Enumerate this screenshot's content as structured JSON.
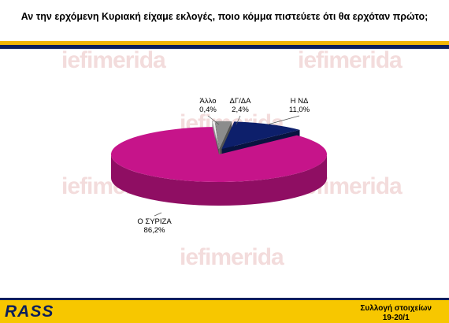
{
  "title": "Αν την ερχόμενη Κυριακή είχαμε εκλογές, ποιο κόμμα πιστεύετε ότι θα ερχόταν πρώτο;",
  "watermark": "iefimerida",
  "footer": {
    "logo": "RASS",
    "collection_label": "Συλλογή στοιχείων",
    "collection_dates": "19-20/1"
  },
  "colors": {
    "gold": "#f2b705",
    "navy": "#0b1f5c",
    "syriza": "#c6148a",
    "nd": "#0d1f6b",
    "dgda": "#8c8c8c",
    "allo": "#f0f0f0"
  },
  "chart_data": {
    "type": "pie",
    "title": "Αν την ερχόμενη Κυριακή είχαμε εκλογές, ποιο κόμμα πιστεύετε ότι θα ερχόταν πρώτο;",
    "slices": [
      {
        "name": "Ο ΣΥΡΙΖΑ",
        "value": 86.2,
        "label": "86,2%",
        "color": "#c6148a"
      },
      {
        "name": "Η ΝΔ",
        "value": 11.0,
        "label": "11,0%",
        "color": "#0d1f6b"
      },
      {
        "name": "ΔΓ/ΔΑ",
        "value": 2.4,
        "label": "2,4%",
        "color": "#8c8c8c"
      },
      {
        "name": "Άλλο",
        "value": 0.4,
        "label": "0,4%",
        "color": "#f0f0f0"
      }
    ]
  }
}
